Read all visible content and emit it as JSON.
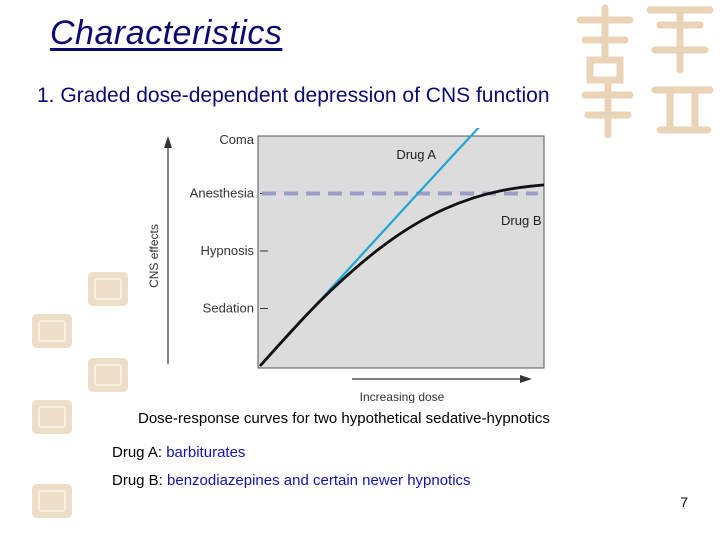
{
  "slide": {
    "title": "Characteristics",
    "subtitle": "1. Graded dose-dependent depression of CNS function",
    "caption": "Dose-response curves for two hypothetical sedative-hypnotics",
    "drugs": [
      {
        "label": "Drug A: ",
        "value": "barbiturates"
      },
      {
        "label": "Drug B: ",
        "value": "benzodiazepines and certain newer hypnotics"
      }
    ],
    "page_number": "7"
  },
  "chart_data": {
    "type": "line",
    "xlabel": "Increasing dose",
    "ylabel": "CNS effects",
    "y_levels": [
      "Sedation",
      "Hypnosis",
      "Anesthesia",
      "Coma"
    ],
    "xlim": [
      0,
      1
    ],
    "ylim": [
      0,
      4
    ],
    "series": [
      {
        "name": "Drug A",
        "color": "#1fa6d6",
        "x": [
          0.0,
          0.2,
          0.4,
          0.6,
          0.78
        ],
        "y": [
          0.0,
          1.08,
          2.16,
          3.24,
          4.2
        ]
      },
      {
        "name": "Drug B",
        "color": "#111111",
        "x": [
          0.0,
          0.1,
          0.2,
          0.3,
          0.4,
          0.5,
          0.6,
          0.7,
          0.8,
          0.9,
          1.0
        ],
        "y": [
          0.0,
          0.55,
          1.08,
          1.55,
          1.97,
          2.33,
          2.62,
          2.84,
          3.0,
          3.1,
          3.15
        ]
      }
    ],
    "reference_lines": [
      {
        "label": "Anesthesia",
        "y": 3.0,
        "style": "dashed",
        "color": "#9c9cc8"
      }
    ],
    "grid": false,
    "legend": "inline labels"
  }
}
